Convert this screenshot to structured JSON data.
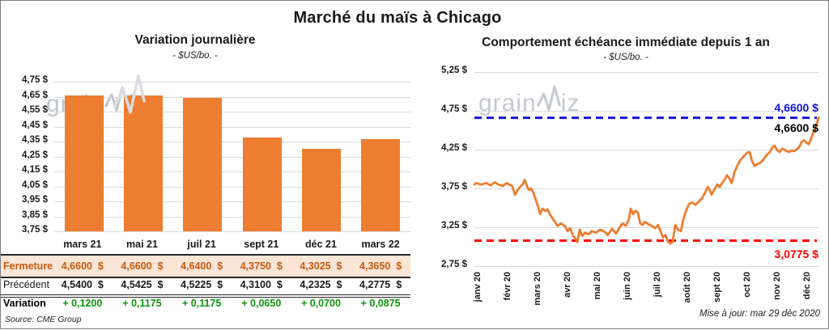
{
  "figure_title": "Marché du maïs à Chicago",
  "source_note": "Source: CME Group",
  "updated_note": "Mise à jour: mar 29 déc 2020",
  "watermark": {
    "pre": "grain",
    "post": "iz"
  },
  "colors": {
    "bar": "#ED7D31",
    "line": "#ED7D31",
    "ref_high": "#1414DC",
    "ref_low": "#FF0000",
    "close_bg": "#FBE5D6",
    "close_text": "#C55A11",
    "variation_text": "#0E930E",
    "grid": "#D9D9D9"
  },
  "chart_data": [
    {
      "type": "bar",
      "title": "Variation  journalière",
      "subtitle": "- $US/bo. -",
      "categories": [
        "mars 21",
        "mai 21",
        "juil 21",
        "sept 21",
        "déc 21",
        "mars 22"
      ],
      "values": [
        4.66,
        4.66,
        4.64,
        4.375,
        4.3025,
        4.365
      ],
      "ylim": [
        3.75,
        4.75
      ],
      "ytick_step": 0.1,
      "grid": true,
      "table": {
        "rows": [
          {
            "key": "close",
            "label": "Fermeture",
            "values": [
              "4,6600  $",
              "4,6600  $",
              "4,6400  $",
              "4,3750  $",
              "4,3025  $",
              "4,3650  $"
            ]
          },
          {
            "key": "prev",
            "label": "Précédent",
            "values": [
              "4,5400  $",
              "4,5425  $",
              "4,5225  $",
              "4,3100  $",
              "4,2325  $",
              "4,2775  $"
            ]
          },
          {
            "key": "var",
            "label": "Variation",
            "values": [
              "+ 0,1200",
              "+ 0,1175",
              "+ 0,1175",
              "+ 0,0650",
              "+ 0,0700",
              "+ 0,0875"
            ]
          }
        ]
      }
    },
    {
      "type": "line",
      "title": "Comportement  échéance immédiate  depuis 1 an",
      "subtitle": "- $US/bo. -",
      "x_labels": [
        "janv 20",
        "févr 20",
        "mars 20",
        "avr 20",
        "mai 20",
        "juin 20",
        "juil 20",
        "août 20",
        "sept 20",
        "oct 20",
        "nov 20",
        "déc 20"
      ],
      "ylim": [
        2.75,
        5.25
      ],
      "ytick_step": 0.5,
      "grid": true,
      "ref_lines": [
        {
          "value": 4.66,
          "label": "4,6600 $",
          "position": "above",
          "color_key": "ref_high"
        },
        {
          "value": 3.0775,
          "label": "3,0775 $",
          "position": "below",
          "color_key": "ref_low"
        }
      ],
      "last_value_label": "4,6600 $",
      "points": [
        [
          0,
          3.8
        ],
        [
          0.005,
          3.82
        ],
        [
          0.02,
          3.8
        ],
        [
          0.035,
          3.82
        ],
        [
          0.047,
          3.79
        ],
        [
          0.059,
          3.83
        ],
        [
          0.07,
          3.8
        ],
        [
          0.082,
          3.78
        ],
        [
          0.094,
          3.82
        ],
        [
          0.101,
          3.8
        ],
        [
          0.11,
          3.78
        ],
        [
          0.118,
          3.67
        ],
        [
          0.129,
          3.75
        ],
        [
          0.14,
          3.8
        ],
        [
          0.146,
          3.86
        ],
        [
          0.152,
          3.79
        ],
        [
          0.158,
          3.73
        ],
        [
          0.165,
          3.75
        ],
        [
          0.172,
          3.69
        ],
        [
          0.184,
          3.53
        ],
        [
          0.191,
          3.42
        ],
        [
          0.198,
          3.49
        ],
        [
          0.207,
          3.46
        ],
        [
          0.213,
          3.48
        ],
        [
          0.219,
          3.42
        ],
        [
          0.231,
          3.34
        ],
        [
          0.242,
          3.27
        ],
        [
          0.252,
          3.3
        ],
        [
          0.264,
          3.26
        ],
        [
          0.271,
          3.2
        ],
        [
          0.278,
          3.24
        ],
        [
          0.287,
          3.14
        ],
        [
          0.294,
          3.1
        ],
        [
          0.299,
          3.06
        ],
        [
          0.306,
          3.22
        ],
        [
          0.313,
          3.14
        ],
        [
          0.322,
          3.18
        ],
        [
          0.332,
          3.16
        ],
        [
          0.341,
          3.2
        ],
        [
          0.353,
          3.18
        ],
        [
          0.365,
          3.22
        ],
        [
          0.376,
          3.2
        ],
        [
          0.388,
          3.15
        ],
        [
          0.4,
          3.23
        ],
        [
          0.412,
          3.17
        ],
        [
          0.421,
          3.24
        ],
        [
          0.431,
          3.3
        ],
        [
          0.44,
          3.27
        ],
        [
          0.449,
          3.35
        ],
        [
          0.454,
          3.49
        ],
        [
          0.461,
          3.42
        ],
        [
          0.468,
          3.46
        ],
        [
          0.475,
          3.44
        ],
        [
          0.482,
          3.3
        ],
        [
          0.489,
          3.28
        ],
        [
          0.496,
          3.32
        ],
        [
          0.506,
          3.29
        ],
        [
          0.515,
          3.27
        ],
        [
          0.525,
          3.24
        ],
        [
          0.534,
          3.28
        ],
        [
          0.541,
          3.2
        ],
        [
          0.548,
          3.12
        ],
        [
          0.555,
          3.15
        ],
        [
          0.562,
          3.07
        ],
        [
          0.569,
          3.04
        ],
        [
          0.576,
          3.06
        ],
        [
          0.584,
          3.28
        ],
        [
          0.591,
          3.22
        ],
        [
          0.6,
          3.2
        ],
        [
          0.607,
          3.35
        ],
        [
          0.614,
          3.45
        ],
        [
          0.624,
          3.55
        ],
        [
          0.633,
          3.57
        ],
        [
          0.642,
          3.54
        ],
        [
          0.652,
          3.58
        ],
        [
          0.661,
          3.62
        ],
        [
          0.671,
          3.7
        ],
        [
          0.678,
          3.77
        ],
        [
          0.685,
          3.72
        ],
        [
          0.689,
          3.67
        ],
        [
          0.699,
          3.75
        ],
        [
          0.706,
          3.8
        ],
        [
          0.713,
          3.77
        ],
        [
          0.72,
          3.82
        ],
        [
          0.727,
          3.86
        ],
        [
          0.734,
          3.92
        ],
        [
          0.741,
          3.88
        ],
        [
          0.748,
          3.82
        ],
        [
          0.755,
          3.95
        ],
        [
          0.765,
          4.05
        ],
        [
          0.774,
          4.12
        ],
        [
          0.784,
          4.17
        ],
        [
          0.793,
          4.21
        ],
        [
          0.8,
          4.22
        ],
        [
          0.807,
          4.1
        ],
        [
          0.814,
          4.04
        ],
        [
          0.821,
          4.06
        ],
        [
          0.831,
          4.08
        ],
        [
          0.84,
          4.12
        ],
        [
          0.849,
          4.18
        ],
        [
          0.859,
          4.22
        ],
        [
          0.866,
          4.28
        ],
        [
          0.873,
          4.3
        ],
        [
          0.88,
          4.24
        ],
        [
          0.887,
          4.22
        ],
        [
          0.894,
          4.26
        ],
        [
          0.901,
          4.25
        ],
        [
          0.908,
          4.23
        ],
        [
          0.915,
          4.22
        ],
        [
          0.922,
          4.24
        ],
        [
          0.929,
          4.23
        ],
        [
          0.936,
          4.25
        ],
        [
          0.944,
          4.28
        ],
        [
          0.951,
          4.35
        ],
        [
          0.958,
          4.37
        ],
        [
          0.965,
          4.34
        ],
        [
          0.972,
          4.32
        ],
        [
          0.979,
          4.4
        ],
        [
          0.986,
          4.48
        ],
        [
          0.993,
          4.55
        ],
        [
          0.998,
          4.62
        ],
        [
          1,
          4.66
        ]
      ]
    }
  ]
}
